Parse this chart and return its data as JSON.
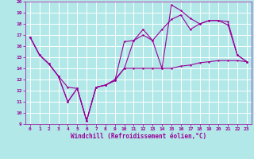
{
  "background_color": "#b2e8e8",
  "grid_color": "#ffffff",
  "line_color": "#990099",
  "xlabel": "Windchill (Refroidissement éolien,°C)",
  "xlim": [
    -0.5,
    23.5
  ],
  "ylim": [
    9,
    20
  ],
  "yticks": [
    9,
    10,
    11,
    12,
    13,
    14,
    15,
    16,
    17,
    18,
    19,
    20
  ],
  "xticks": [
    0,
    1,
    2,
    3,
    4,
    5,
    6,
    7,
    8,
    9,
    10,
    11,
    12,
    13,
    14,
    15,
    16,
    17,
    18,
    19,
    20,
    21,
    22,
    23
  ],
  "series1_x": [
    0,
    1,
    2,
    3,
    4,
    5,
    6,
    7,
    8,
    9,
    10,
    11,
    12,
    13,
    14,
    15,
    16,
    17,
    18,
    19,
    20,
    21,
    22,
    23
  ],
  "series1_y": [
    16.8,
    15.2,
    14.4,
    13.3,
    12.3,
    12.2,
    9.3,
    12.3,
    12.5,
    13.0,
    14.0,
    14.0,
    14.0,
    14.0,
    14.0,
    14.0,
    14.2,
    14.3,
    14.5,
    14.6,
    14.7,
    14.7,
    14.7,
    14.6
  ],
  "series2_x": [
    0,
    1,
    2,
    3,
    4,
    5,
    6,
    7,
    8,
    9,
    10,
    11,
    12,
    13,
    14,
    15,
    16,
    17,
    18,
    19,
    20,
    21,
    22,
    23
  ],
  "series2_y": [
    16.8,
    15.2,
    14.4,
    13.3,
    11.0,
    12.2,
    9.3,
    12.3,
    12.5,
    12.9,
    16.4,
    16.5,
    17.0,
    16.5,
    17.5,
    18.4,
    18.8,
    17.5,
    18.0,
    18.3,
    18.3,
    18.2,
    15.2,
    14.6
  ],
  "series3_x": [
    0,
    1,
    2,
    3,
    4,
    5,
    6,
    7,
    8,
    9,
    10,
    11,
    12,
    13,
    14,
    15,
    16,
    17,
    18,
    19,
    20,
    21,
    22,
    23
  ],
  "series3_y": [
    16.8,
    15.2,
    14.4,
    13.3,
    11.0,
    12.2,
    9.3,
    12.3,
    12.5,
    12.9,
    14.0,
    16.5,
    17.5,
    16.5,
    14.0,
    19.7,
    19.2,
    18.5,
    18.0,
    18.3,
    18.3,
    17.9,
    15.2,
    14.6
  ]
}
